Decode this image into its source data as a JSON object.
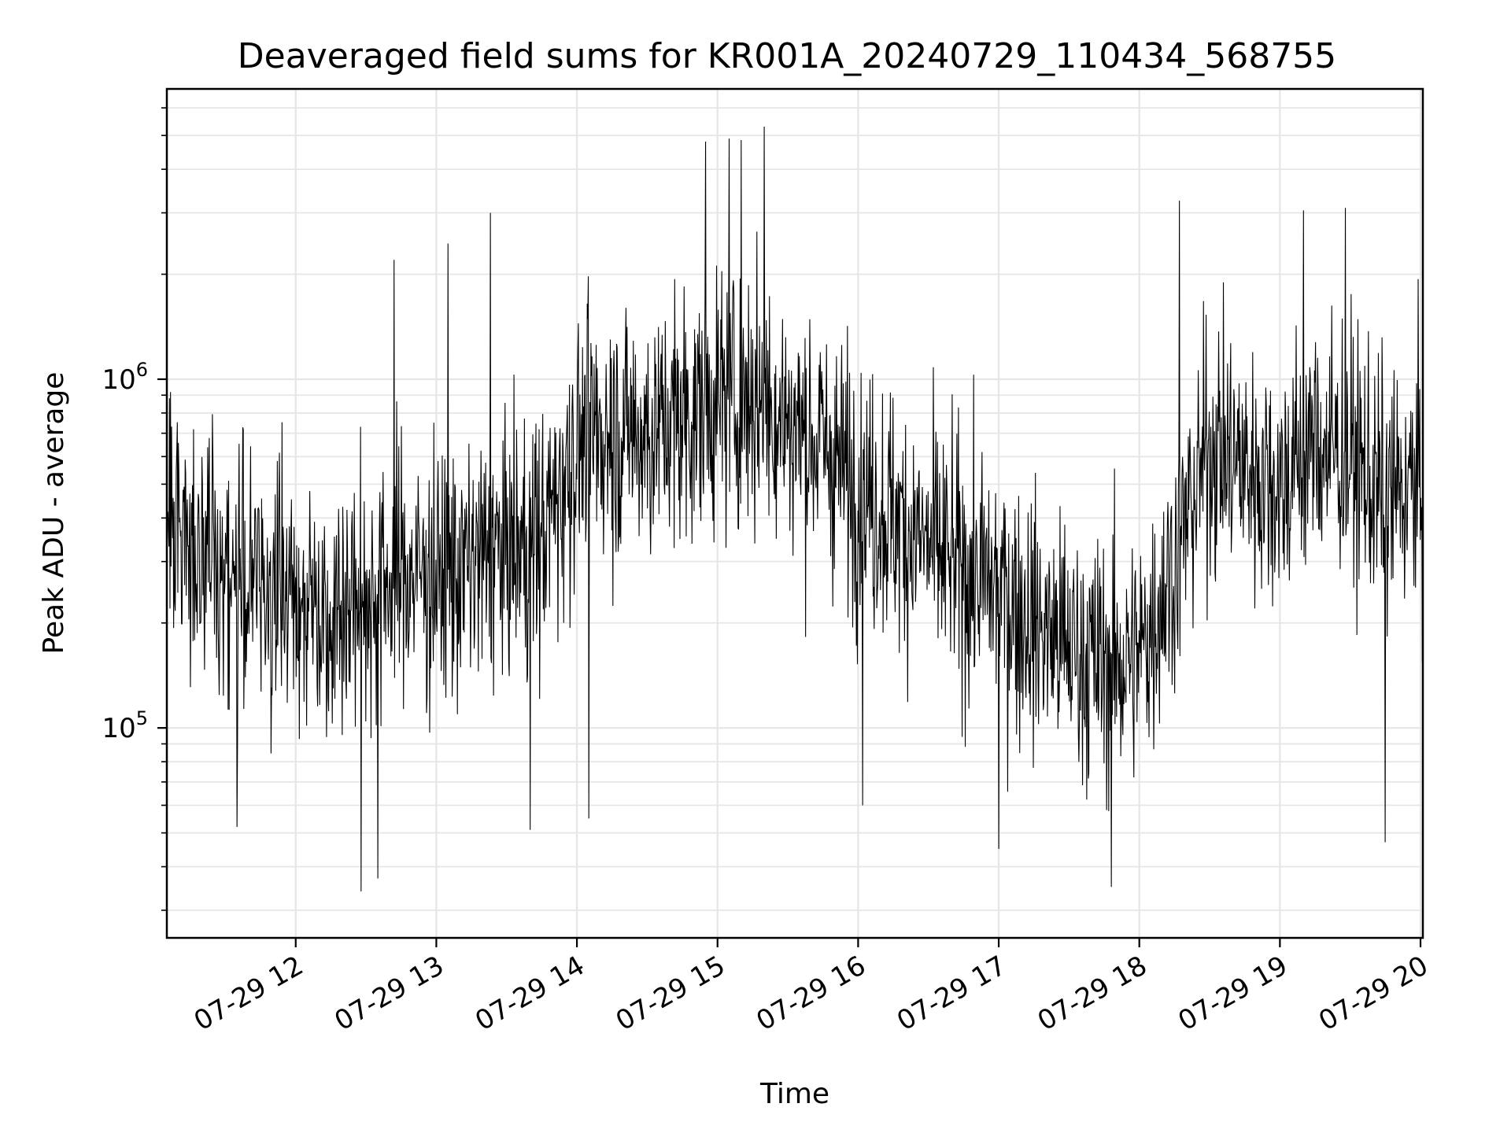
{
  "chart_data": {
    "type": "line",
    "title": "Deaveraged field sums for KR001A_20240729_110434_568755",
    "xlabel": "Time",
    "ylabel": "Peak ADU - average",
    "y_scale": "log",
    "ylim": [
      25000,
      6800000
    ],
    "xlim": [
      "2024-07-29 11:05",
      "2024-07-29 20:01"
    ],
    "grid": true,
    "line_color": "#000000",
    "grid_color": "#e6e6e6",
    "x_ticks": [
      {
        "value": "2024-07-29 12:00",
        "label": "07-29 12"
      },
      {
        "value": "2024-07-29 13:00",
        "label": "07-29 13"
      },
      {
        "value": "2024-07-29 14:00",
        "label": "07-29 14"
      },
      {
        "value": "2024-07-29 15:00",
        "label": "07-29 15"
      },
      {
        "value": "2024-07-29 16:00",
        "label": "07-29 16"
      },
      {
        "value": "2024-07-29 17:00",
        "label": "07-29 17"
      },
      {
        "value": "2024-07-29 18:00",
        "label": "07-29 18"
      },
      {
        "value": "2024-07-29 19:00",
        "label": "07-29 19"
      },
      {
        "value": "2024-07-29 20:00",
        "label": "07-29 20"
      }
    ],
    "y_ticks": [
      {
        "value": 100000,
        "base": "10",
        "exp": "5"
      },
      {
        "value": 1000000,
        "base": "10",
        "exp": "6"
      }
    ],
    "series": [
      {
        "points": [
          [
            "2024-07-29 11:05",
            400000
          ],
          [
            "2024-07-29 11:15",
            350000
          ],
          [
            "2024-07-29 11:30",
            280000
          ],
          [
            "2024-07-29 11:45",
            260000
          ],
          [
            "2024-07-29 12:00",
            240000
          ],
          [
            "2024-07-29 12:15",
            220000
          ],
          [
            "2024-07-29 12:30",
            240000
          ],
          [
            "2024-07-29 12:45",
            280000
          ],
          [
            "2024-07-29 13:00",
            270000
          ],
          [
            "2024-07-29 13:15",
            290000
          ],
          [
            "2024-07-29 13:30",
            320000
          ],
          [
            "2024-07-29 13:45",
            350000
          ],
          [
            "2024-07-29 14:00",
            650000
          ],
          [
            "2024-07-29 14:15",
            720000
          ],
          [
            "2024-07-29 14:30",
            700000
          ],
          [
            "2024-07-29 14:45",
            780000
          ],
          [
            "2024-07-29 15:00",
            850000
          ],
          [
            "2024-07-29 15:15",
            900000
          ],
          [
            "2024-07-29 15:30",
            750000
          ],
          [
            "2024-07-29 15:45",
            650000
          ],
          [
            "2024-07-29 16:00",
            480000
          ],
          [
            "2024-07-29 16:15",
            400000
          ],
          [
            "2024-07-29 16:30",
            330000
          ],
          [
            "2024-07-29 16:45",
            280000
          ],
          [
            "2024-07-29 17:00",
            250000
          ],
          [
            "2024-07-29 17:15",
            200000
          ],
          [
            "2024-07-29 17:30",
            170000
          ],
          [
            "2024-07-29 17:45",
            150000
          ],
          [
            "2024-07-29 18:00",
            160000
          ],
          [
            "2024-07-29 18:15",
            300000
          ],
          [
            "2024-07-29 18:30",
            650000
          ],
          [
            "2024-07-29 18:45",
            560000
          ],
          [
            "2024-07-29 19:00",
            500000
          ],
          [
            "2024-07-29 19:15",
            650000
          ],
          [
            "2024-07-29 19:30",
            600000
          ],
          [
            "2024-07-29 19:45",
            450000
          ],
          [
            "2024-07-29 20:00",
            500000
          ]
        ],
        "spikes_up": [
          [
            "2024-07-29 12:42",
            2200000
          ],
          [
            "2024-07-29 13:05",
            2450000
          ],
          [
            "2024-07-29 13:23",
            3000000
          ],
          [
            "2024-07-29 14:55",
            4800000
          ],
          [
            "2024-07-29 15:05",
            4900000
          ],
          [
            "2024-07-29 15:10",
            4850000
          ],
          [
            "2024-07-29 15:20",
            5300000
          ],
          [
            "2024-07-29 18:17",
            3250000
          ],
          [
            "2024-07-29 19:10",
            3050000
          ],
          [
            "2024-07-29 19:28",
            3100000
          ]
        ],
        "spikes_down": [
          [
            "2024-07-29 11:35",
            52000
          ],
          [
            "2024-07-29 12:28",
            34000
          ],
          [
            "2024-07-29 12:35",
            37000
          ],
          [
            "2024-07-29 13:40",
            51000
          ],
          [
            "2024-07-29 14:05",
            55000
          ],
          [
            "2024-07-29 16:02",
            60000
          ],
          [
            "2024-07-29 17:00",
            45000
          ],
          [
            "2024-07-29 17:48",
            35000
          ],
          [
            "2024-07-29 19:45",
            47000
          ]
        ]
      }
    ]
  }
}
